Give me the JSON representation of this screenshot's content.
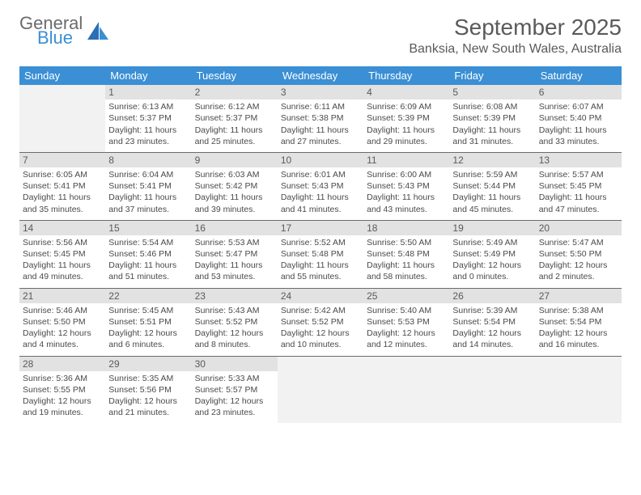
{
  "brand": {
    "line1": "General",
    "line2": "Blue"
  },
  "title": "September 2025",
  "location": "Banksia, New South Wales, Australia",
  "colors": {
    "header_bg": "#3b8fd4",
    "header_text": "#ffffff",
    "daynum_bg": "#e2e2e2",
    "inactive_bg": "#f2f2f2",
    "border": "#6b6b6b",
    "text": "#4a4a4a"
  },
  "columns": [
    "Sunday",
    "Monday",
    "Tuesday",
    "Wednesday",
    "Thursday",
    "Friday",
    "Saturday"
  ],
  "weeks": [
    [
      {
        "inactive": true
      },
      {
        "day": "1",
        "sunrise": "Sunrise: 6:13 AM",
        "sunset": "Sunset: 5:37 PM",
        "daylight": "Daylight: 11 hours and 23 minutes."
      },
      {
        "day": "2",
        "sunrise": "Sunrise: 6:12 AM",
        "sunset": "Sunset: 5:37 PM",
        "daylight": "Daylight: 11 hours and 25 minutes."
      },
      {
        "day": "3",
        "sunrise": "Sunrise: 6:11 AM",
        "sunset": "Sunset: 5:38 PM",
        "daylight": "Daylight: 11 hours and 27 minutes."
      },
      {
        "day": "4",
        "sunrise": "Sunrise: 6:09 AM",
        "sunset": "Sunset: 5:39 PM",
        "daylight": "Daylight: 11 hours and 29 minutes."
      },
      {
        "day": "5",
        "sunrise": "Sunrise: 6:08 AM",
        "sunset": "Sunset: 5:39 PM",
        "daylight": "Daylight: 11 hours and 31 minutes."
      },
      {
        "day": "6",
        "sunrise": "Sunrise: 6:07 AM",
        "sunset": "Sunset: 5:40 PM",
        "daylight": "Daylight: 11 hours and 33 minutes."
      }
    ],
    [
      {
        "day": "7",
        "sunrise": "Sunrise: 6:05 AM",
        "sunset": "Sunset: 5:41 PM",
        "daylight": "Daylight: 11 hours and 35 minutes."
      },
      {
        "day": "8",
        "sunrise": "Sunrise: 6:04 AM",
        "sunset": "Sunset: 5:41 PM",
        "daylight": "Daylight: 11 hours and 37 minutes."
      },
      {
        "day": "9",
        "sunrise": "Sunrise: 6:03 AM",
        "sunset": "Sunset: 5:42 PM",
        "daylight": "Daylight: 11 hours and 39 minutes."
      },
      {
        "day": "10",
        "sunrise": "Sunrise: 6:01 AM",
        "sunset": "Sunset: 5:43 PM",
        "daylight": "Daylight: 11 hours and 41 minutes."
      },
      {
        "day": "11",
        "sunrise": "Sunrise: 6:00 AM",
        "sunset": "Sunset: 5:43 PM",
        "daylight": "Daylight: 11 hours and 43 minutes."
      },
      {
        "day": "12",
        "sunrise": "Sunrise: 5:59 AM",
        "sunset": "Sunset: 5:44 PM",
        "daylight": "Daylight: 11 hours and 45 minutes."
      },
      {
        "day": "13",
        "sunrise": "Sunrise: 5:57 AM",
        "sunset": "Sunset: 5:45 PM",
        "daylight": "Daylight: 11 hours and 47 minutes."
      }
    ],
    [
      {
        "day": "14",
        "sunrise": "Sunrise: 5:56 AM",
        "sunset": "Sunset: 5:45 PM",
        "daylight": "Daylight: 11 hours and 49 minutes."
      },
      {
        "day": "15",
        "sunrise": "Sunrise: 5:54 AM",
        "sunset": "Sunset: 5:46 PM",
        "daylight": "Daylight: 11 hours and 51 minutes."
      },
      {
        "day": "16",
        "sunrise": "Sunrise: 5:53 AM",
        "sunset": "Sunset: 5:47 PM",
        "daylight": "Daylight: 11 hours and 53 minutes."
      },
      {
        "day": "17",
        "sunrise": "Sunrise: 5:52 AM",
        "sunset": "Sunset: 5:48 PM",
        "daylight": "Daylight: 11 hours and 55 minutes."
      },
      {
        "day": "18",
        "sunrise": "Sunrise: 5:50 AM",
        "sunset": "Sunset: 5:48 PM",
        "daylight": "Daylight: 11 hours and 58 minutes."
      },
      {
        "day": "19",
        "sunrise": "Sunrise: 5:49 AM",
        "sunset": "Sunset: 5:49 PM",
        "daylight": "Daylight: 12 hours and 0 minutes."
      },
      {
        "day": "20",
        "sunrise": "Sunrise: 5:47 AM",
        "sunset": "Sunset: 5:50 PM",
        "daylight": "Daylight: 12 hours and 2 minutes."
      }
    ],
    [
      {
        "day": "21",
        "sunrise": "Sunrise: 5:46 AM",
        "sunset": "Sunset: 5:50 PM",
        "daylight": "Daylight: 12 hours and 4 minutes."
      },
      {
        "day": "22",
        "sunrise": "Sunrise: 5:45 AM",
        "sunset": "Sunset: 5:51 PM",
        "daylight": "Daylight: 12 hours and 6 minutes."
      },
      {
        "day": "23",
        "sunrise": "Sunrise: 5:43 AM",
        "sunset": "Sunset: 5:52 PM",
        "daylight": "Daylight: 12 hours and 8 minutes."
      },
      {
        "day": "24",
        "sunrise": "Sunrise: 5:42 AM",
        "sunset": "Sunset: 5:52 PM",
        "daylight": "Daylight: 12 hours and 10 minutes."
      },
      {
        "day": "25",
        "sunrise": "Sunrise: 5:40 AM",
        "sunset": "Sunset: 5:53 PM",
        "daylight": "Daylight: 12 hours and 12 minutes."
      },
      {
        "day": "26",
        "sunrise": "Sunrise: 5:39 AM",
        "sunset": "Sunset: 5:54 PM",
        "daylight": "Daylight: 12 hours and 14 minutes."
      },
      {
        "day": "27",
        "sunrise": "Sunrise: 5:38 AM",
        "sunset": "Sunset: 5:54 PM",
        "daylight": "Daylight: 12 hours and 16 minutes."
      }
    ],
    [
      {
        "day": "28",
        "sunrise": "Sunrise: 5:36 AM",
        "sunset": "Sunset: 5:55 PM",
        "daylight": "Daylight: 12 hours and 19 minutes."
      },
      {
        "day": "29",
        "sunrise": "Sunrise: 5:35 AM",
        "sunset": "Sunset: 5:56 PM",
        "daylight": "Daylight: 12 hours and 21 minutes."
      },
      {
        "day": "30",
        "sunrise": "Sunrise: 5:33 AM",
        "sunset": "Sunset: 5:57 PM",
        "daylight": "Daylight: 12 hours and 23 minutes."
      },
      {
        "inactive": true
      },
      {
        "inactive": true
      },
      {
        "inactive": true
      },
      {
        "inactive": true
      }
    ]
  ]
}
